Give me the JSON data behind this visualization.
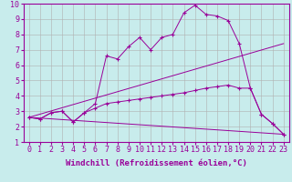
{
  "xlabel": "Windchill (Refroidissement éolien,°C)",
  "background_color": "#c8ecec",
  "line_color": "#990099",
  "xlim": [
    -0.5,
    23.5
  ],
  "ylim": [
    1,
    10
  ],
  "xticks": [
    0,
    1,
    2,
    3,
    4,
    5,
    6,
    7,
    8,
    9,
    10,
    11,
    12,
    13,
    14,
    15,
    16,
    17,
    18,
    19,
    20,
    21,
    22,
    23
  ],
  "yticks": [
    1,
    2,
    3,
    4,
    5,
    6,
    7,
    8,
    9,
    10
  ],
  "line1_x": [
    0,
    1,
    2,
    3,
    4,
    5,
    6,
    7,
    8,
    9,
    10,
    11,
    12,
    13,
    14,
    15,
    16,
    17,
    18,
    19,
    20,
    21,
    22,
    23
  ],
  "line1_y": [
    2.6,
    2.5,
    2.9,
    3.0,
    2.3,
    2.9,
    3.5,
    6.6,
    6.4,
    7.2,
    7.8,
    7.0,
    7.8,
    8.0,
    9.4,
    9.9,
    9.3,
    9.2,
    8.9,
    7.4,
    4.5,
    2.8,
    2.2,
    1.5
  ],
  "line2_x": [
    0,
    1,
    2,
    3,
    4,
    5,
    6,
    7,
    8,
    9,
    10,
    11,
    12,
    13,
    14,
    15,
    16,
    17,
    18,
    19,
    20,
    21,
    22,
    23
  ],
  "line2_y": [
    2.6,
    2.5,
    2.9,
    3.0,
    2.3,
    2.9,
    3.2,
    3.5,
    3.6,
    3.7,
    3.8,
    3.9,
    4.0,
    4.1,
    4.2,
    4.35,
    4.5,
    4.6,
    4.7,
    4.5,
    4.5,
    2.8,
    2.2,
    1.5
  ],
  "line3_x": [
    0,
    23
  ],
  "line3_y": [
    2.6,
    7.4
  ],
  "line4_x": [
    0,
    23
  ],
  "line4_y": [
    2.6,
    1.5
  ],
  "grid_color": "#b0b0b0",
  "xlabel_fontsize": 6.5,
  "tick_fontsize": 6
}
